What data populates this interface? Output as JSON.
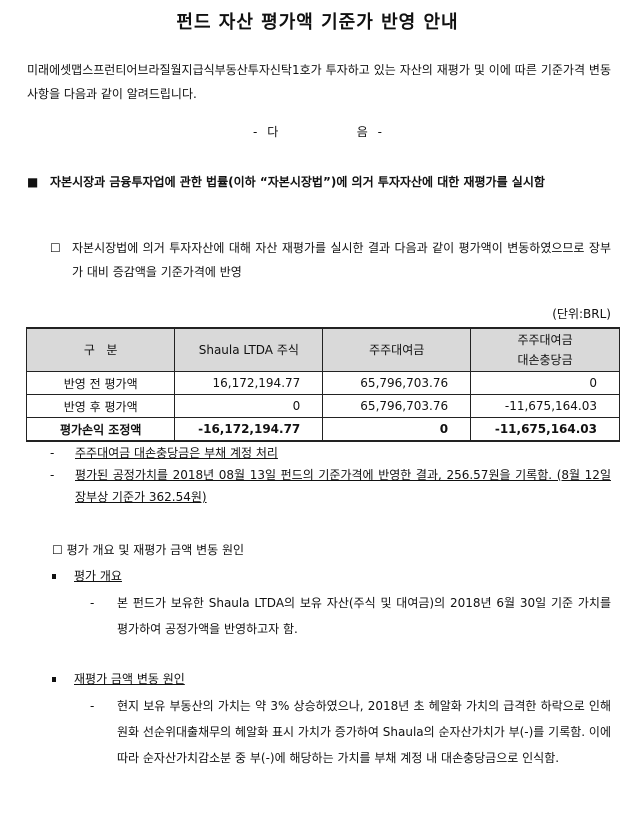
{
  "title": "펀드 자산 평가액 기준가 반영 안내",
  "intro": "미래에셋맵스프런티어브라질월지급식부동산투자신탁1호가 투자하고 있는 자산의 재평가 및 이에 따른 기준가격 변동사항을 다음과 같이 알려드립니다.",
  "dagum": "- 다        음 -",
  "section1": {
    "marker": "■",
    "text": "자본시장과 금융투자업에 관한 법률(이하 “자본시장법”)에 의거 투자자산에 대한 재평가를 실시함"
  },
  "para1": {
    "marker": "☐",
    "text": "자본시장법에 의거 투자자산에 대해 자산 재평가를 실시한 결과 다음과 같이 평가액이 변동하였으므로 장부가 대비 증감액을 기준가격에 반영"
  },
  "unit": "(단위:BRL)",
  "table": {
    "headers": [
      "구   분",
      "Shaula LTDA 주식",
      "주주대여금",
      "주주대여금",
      "대손충당금"
    ],
    "rows": [
      [
        "반영 전 평가액",
        "16,172,194.77",
        "65,796,703.76",
        "0"
      ],
      [
        "반영 후 평가액",
        "0",
        "65,796,703.76",
        "-11,675,164.03"
      ],
      [
        "평가손익 조정액",
        "-16,172,194.77",
        "0",
        "-11,675,164.03"
      ]
    ]
  },
  "notes": [
    {
      "marker": "-",
      "text": "주주대여금 대손충당금은 부채 계정 처리"
    },
    {
      "marker": "-",
      "text": "평가된 공정가치를 2018년 08월 13일 펀드의 기준가격에 반영한 결과, 256.57원을 기록함. (8월 12일 장부상 기준가 362.54원)"
    }
  ],
  "section2": {
    "marker": "☐",
    "text": "평가 개요 및 재평가 금액 변동 원인"
  },
  "bullet1": {
    "label": "평가 개요",
    "dash": "-",
    "text": "본 펀드가 보유한 Shaula LTDA의 보유 자산(주식 및 대여금)의 2018년 6월 30일 기준 가치를 평가하여 공정가액을 반영하고자 함."
  },
  "bullet2": {
    "label": "재평가 금액 변동 원인",
    "dash": "-",
    "text": "현지 보유 부동산의 가치는 약 3% 상승하였으나, 2018년 초 헤알화 가치의 급격한 하락으로 인해 원화 선순위대출채무의 헤알화 표시 가치가 증가하여 Shaula의 순자산가치가 부(-)를 기록함. 이에 따라 순자산가치감소분 중 부(-)에 해당하는 가치를 부채 계정 내 대손충당금으로 인식함."
  }
}
